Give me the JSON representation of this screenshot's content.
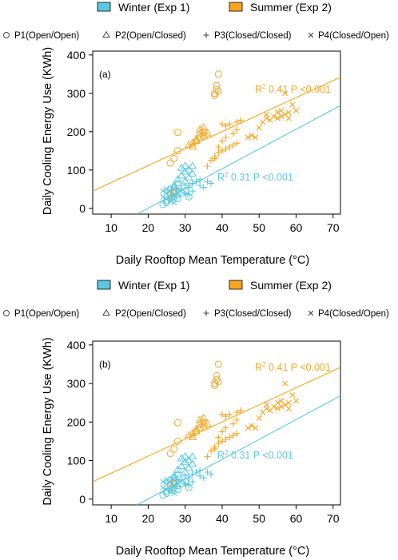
{
  "colors": {
    "winter": "#5bc8e0",
    "summer": "#f5a623",
    "axis": "#000000"
  },
  "legend": {
    "items": [
      {
        "label": "Winter (Exp 1)",
        "color": "#5bc8e0"
      },
      {
        "label": "Summer (Exp 2)",
        "color": "#f5a623"
      }
    ],
    "markers": [
      {
        "symbol": "circle",
        "label": "P1(Open/Open)"
      },
      {
        "symbol": "triangle",
        "label": "P2(Open/Closed)"
      },
      {
        "symbol": "plus",
        "label": "P3(Closed/Closed)"
      },
      {
        "symbol": "cross",
        "label": "P4(Closed/Open)"
      }
    ]
  },
  "chart_data": [
    {
      "type": "scatter",
      "panel_label": "(a)",
      "xlabel": "Daily Rooftop Mean Temperature (°C)",
      "ylabel": "Daily Cooling Energy Use (KWh)",
      "xlim": [
        5,
        72
      ],
      "ylim": [
        -15,
        410
      ],
      "xticks": [
        10,
        20,
        30,
        40,
        50,
        60,
        70
      ],
      "yticks": [
        0,
        100,
        200,
        300,
        400
      ],
      "regression": [
        {
          "season": "summer",
          "r2": "0.41",
          "p": "P <0.001",
          "x": [
            5,
            72
          ],
          "y": [
            45,
            342
          ]
        },
        {
          "season": "winter",
          "r2": "0.31",
          "p": "P <0.001",
          "x": [
            17,
            72
          ],
          "y": [
            -15,
            268
          ]
        }
      ]
    },
    {
      "type": "scatter",
      "panel_label": "(b)",
      "xlabel": "Daily Rooftop Mean Temperature (°C)",
      "ylabel": "Daily Cooling Energy Use (KWh)",
      "xlim": [
        5,
        72
      ],
      "ylim": [
        -15,
        410
      ],
      "xticks": [
        10,
        20,
        30,
        40,
        50,
        60,
        70
      ],
      "yticks": [
        0,
        100,
        200,
        300,
        400
      ],
      "regression": [
        {
          "season": "summer",
          "r2": "0.41",
          "p": "P <0.001",
          "x": [
            5,
            72
          ],
          "y": [
            45,
            342
          ]
        },
        {
          "season": "winter",
          "r2": "0.31",
          "p": "P <0.001",
          "x": [
            17,
            72
          ],
          "y": [
            -15,
            268
          ]
        }
      ]
    }
  ],
  "points": {
    "summer": {
      "circle": [
        [
          26,
          118
        ],
        [
          27,
          130
        ],
        [
          28,
          198
        ],
        [
          28,
          150
        ],
        [
          38,
          300
        ],
        [
          38.5,
          310
        ],
        [
          39,
          350
        ],
        [
          38,
          295
        ],
        [
          39,
          305
        ],
        [
          38.5,
          320
        ],
        [
          27,
          40
        ],
        [
          26,
          35
        ],
        [
          27.5,
          45
        ],
        [
          26.5,
          30
        ],
        [
          27,
          38
        ]
      ],
      "triangle": [
        [
          31,
          165
        ],
        [
          32,
          170
        ],
        [
          33,
          180
        ],
        [
          34,
          195
        ],
        [
          35,
          200
        ],
        [
          33,
          175
        ],
        [
          34,
          185
        ],
        [
          35,
          190
        ],
        [
          36,
          195
        ],
        [
          32,
          160
        ],
        [
          34,
          205
        ],
        [
          35,
          210
        ]
      ],
      "plus": [
        [
          36,
          110
        ],
        [
          37,
          125
        ],
        [
          38,
          135
        ],
        [
          39,
          145
        ],
        [
          40,
          150
        ],
        [
          41,
          155
        ],
        [
          42,
          160
        ],
        [
          43,
          165
        ],
        [
          44,
          170
        ],
        [
          39,
          160
        ],
        [
          40,
          175
        ],
        [
          41,
          185
        ],
        [
          43,
          195
        ],
        [
          44,
          205
        ],
        [
          38,
          130
        ],
        [
          42,
          220
        ],
        [
          45,
          230
        ],
        [
          40,
          220
        ],
        [
          41,
          215
        ],
        [
          44,
          225
        ]
      ],
      "cross": [
        [
          47,
          185
        ],
        [
          48,
          190
        ],
        [
          49,
          185
        ],
        [
          50,
          210
        ],
        [
          51,
          225
        ],
        [
          52,
          235
        ],
        [
          53,
          230
        ],
        [
          54,
          240
        ],
        [
          55,
          235
        ],
        [
          56,
          240
        ],
        [
          57,
          245
        ],
        [
          58,
          250
        ],
        [
          57,
          300
        ],
        [
          59,
          270
        ],
        [
          60,
          255
        ],
        [
          56,
          255
        ],
        [
          58,
          235
        ],
        [
          52,
          245
        ],
        [
          55,
          250
        ]
      ]
    },
    "winter": {
      "circle": [
        [
          25,
          20
        ],
        [
          26,
          25
        ],
        [
          27,
          30
        ],
        [
          28,
          35
        ],
        [
          29,
          40
        ],
        [
          30,
          45
        ],
        [
          31,
          30
        ],
        [
          25,
          15
        ],
        [
          26,
          35
        ],
        [
          27,
          45
        ],
        [
          28,
          25
        ],
        [
          24,
          10
        ],
        [
          26,
          50
        ]
      ],
      "triangle": [
        [
          27,
          60
        ],
        [
          28,
          75
        ],
        [
          29,
          85
        ],
        [
          30,
          95
        ],
        [
          31,
          100
        ],
        [
          32,
          90
        ],
        [
          29,
          105
        ],
        [
          30,
          110
        ],
        [
          28,
          65
        ],
        [
          27,
          55
        ],
        [
          31,
          80
        ],
        [
          30,
          70
        ],
        [
          32,
          110
        ]
      ],
      "plus": [
        [
          29,
          50
        ],
        [
          30,
          60
        ],
        [
          31,
          55
        ],
        [
          32,
          65
        ],
        [
          33,
          70
        ],
        [
          34,
          60
        ],
        [
          35,
          55
        ],
        [
          36,
          70
        ],
        [
          37,
          65
        ],
        [
          30,
          40
        ],
        [
          32,
          45
        ],
        [
          31,
          35
        ],
        [
          34,
          75
        ]
      ],
      "cross": [
        [
          24,
          30
        ],
        [
          25,
          40
        ],
        [
          26,
          45
        ],
        [
          27,
          35
        ],
        [
          28,
          50
        ],
        [
          24,
          45
        ],
        [
          25,
          25
        ],
        [
          26,
          20
        ],
        [
          27,
          15
        ],
        [
          25,
          50
        ],
        [
          28,
          40
        ]
      ]
    }
  }
}
